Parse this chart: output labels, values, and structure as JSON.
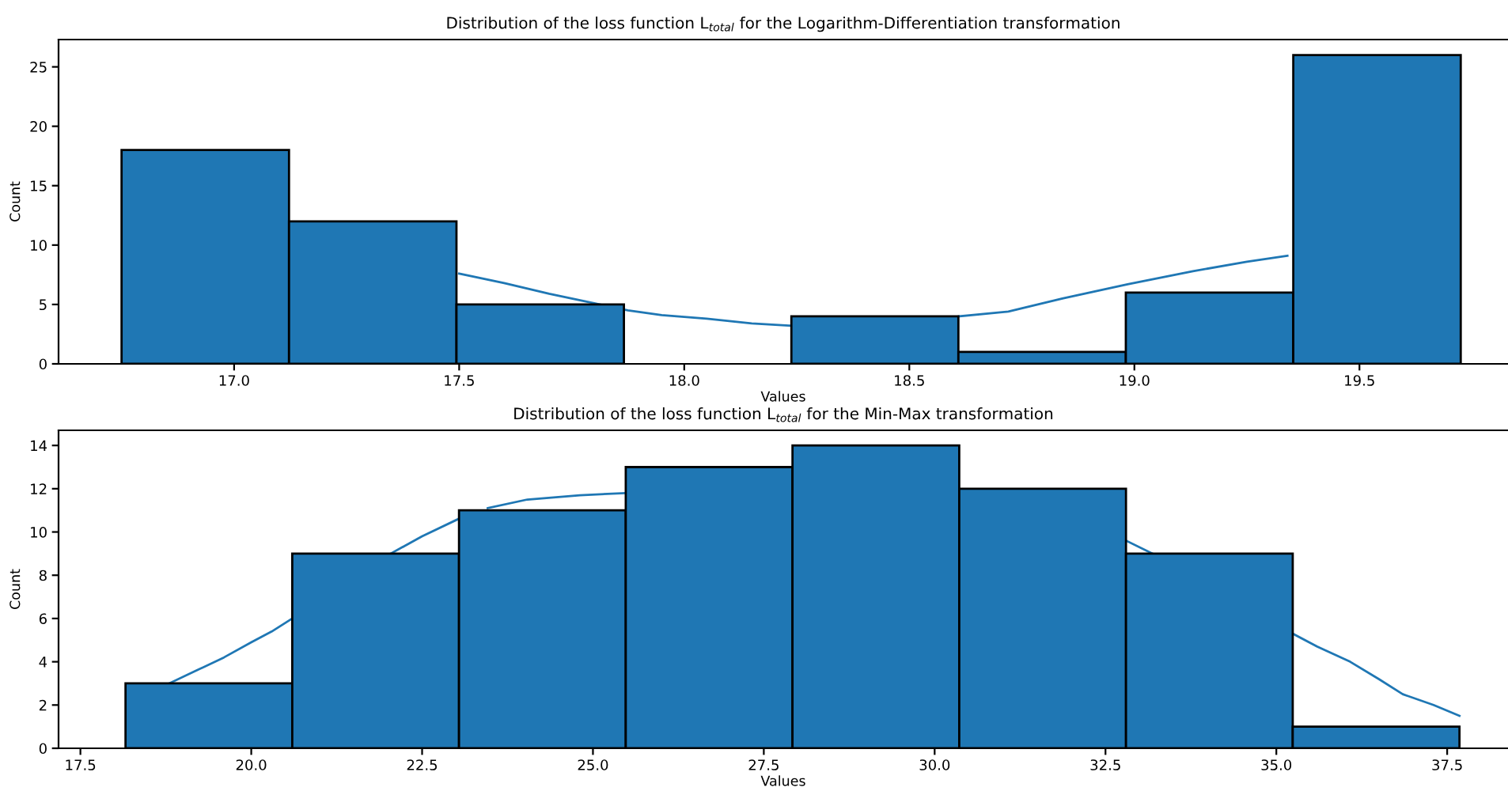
{
  "chart_data": [
    {
      "type": "histogram",
      "title": "Distribution of the loss function L$_{total}$ for the Logarithm-Differentiation transformation",
      "xlabel": "Values",
      "ylabel": "Count",
      "bins": [
        16.75,
        17.122,
        17.494,
        17.866,
        18.238,
        18.609,
        18.981,
        19.353,
        19.725
      ],
      "series": [
        {
          "type": "histogram",
          "color": "#1f77b4",
          "values": [
            18,
            12,
            5,
            0,
            4,
            1,
            6,
            26
          ]
        },
        {
          "type": "line",
          "color": "#1f77b4",
          "x": [
            17.5,
            17.6,
            17.7,
            17.8,
            17.875,
            17.95,
            18.05,
            18.15,
            18.24,
            18.4,
            18.61,
            18.72,
            18.84,
            18.985,
            19.13,
            19.25,
            19.34
          ],
          "values": [
            7.6,
            6.8,
            5.9,
            5.1,
            4.5,
            4.1,
            3.8,
            3.4,
            3.2,
            null,
            4.0,
            4.4,
            5.5,
            6.7,
            7.8,
            8.6,
            9.1
          ]
        }
      ],
      "xlim": [
        16.61,
        19.83
      ],
      "xticks": [
        {
          "value": 17,
          "label": "17.0"
        },
        {
          "value": 17.5,
          "label": "17.5"
        },
        {
          "value": 18,
          "label": "18.0"
        },
        {
          "value": 18.5,
          "label": "18.5"
        },
        {
          "value": 19,
          "label": "19.0"
        },
        {
          "value": 19.5,
          "label": "19.5"
        }
      ],
      "ylim": [
        0,
        27.3
      ],
      "yticks": [
        0,
        5,
        10,
        15,
        20,
        25
      ]
    },
    {
      "type": "histogram",
      "title": "Distribution of the loss function L$_{total}$ for the Min-Max transformation",
      "xlabel": "Values",
      "ylabel": "Count",
      "bins": [
        18.16,
        20.6,
        23.04,
        25.48,
        27.92,
        30.36,
        32.8,
        35.24,
        37.68
      ],
      "series": [
        {
          "type": "histogram",
          "color": "#1f77b4",
          "values": [
            3,
            9,
            11,
            13,
            14,
            12,
            9,
            1
          ]
        },
        {
          "type": "line",
          "color": "#1f77b4",
          "x": [
            18.8,
            19.2,
            19.6,
            20.0,
            20.3,
            20.6,
            21.3,
            22.04,
            22.5,
            23.03,
            23.2,
            23.46,
            24.04,
            24.81,
            25.48,
            29.0,
            32.8,
            33.19,
            34.2,
            35.24,
            35.6,
            36.08,
            36.5,
            36.85,
            37.3,
            37.68
          ],
          "values": [
            3.0,
            3.6,
            4.2,
            4.9,
            5.4,
            6.0,
            null,
            9.0,
            9.8,
            10.6,
            null,
            11.1,
            11.5,
            11.7,
            11.8,
            null,
            9.6,
            9.0,
            null,
            5.3,
            4.7,
            4.0,
            3.2,
            2.5,
            2.0,
            1.5
          ]
        }
      ],
      "xlim": [
        17.18,
        38.39
      ],
      "xticks": [
        {
          "value": 17.5,
          "label": "17.5"
        },
        {
          "value": 20,
          "label": "20.0"
        },
        {
          "value": 22.5,
          "label": "22.5"
        },
        {
          "value": 25,
          "label": "25.0"
        },
        {
          "value": 27.5,
          "label": "27.5"
        },
        {
          "value": 30,
          "label": "30.0"
        },
        {
          "value": 32.5,
          "label": "32.5"
        },
        {
          "value": 35,
          "label": "35.0"
        },
        {
          "value": 37.5,
          "label": "37.5"
        }
      ],
      "ylim": [
        0,
        14.7
      ],
      "yticks": [
        0,
        2,
        4,
        6,
        8,
        10,
        12,
        14
      ]
    }
  ]
}
